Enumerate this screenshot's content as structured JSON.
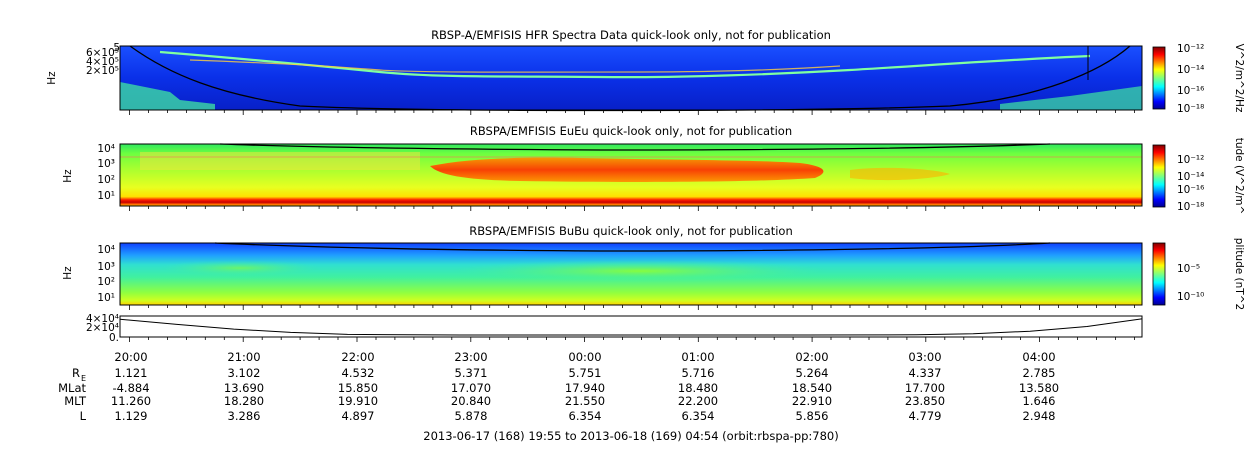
{
  "chart_data": [
    {
      "type": "heatmap",
      "title": "RBSP-A/EMFISIS  HFR Spectra Data quick-look only, not for publication",
      "ylabel": "Hz",
      "ytick_labels": [
        "6×10⁵",
        "4×10⁵",
        "2×10⁵",
        "5"
      ],
      "colorbar_label": "V^2/m^2/Hz",
      "colorbar_ticks": [
        "10⁻¹²",
        "10⁻¹⁴",
        "10⁻¹⁶",
        "10⁻¹⁸"
      ],
      "colorbar_range": [
        1e-18,
        1e-12
      ]
    },
    {
      "type": "heatmap",
      "title": "RBSPA/EMFISIS  EuEu quick-look only, not for publication",
      "ylabel": "Hz",
      "yscale": "log",
      "ytick_labels": [
        "10⁴",
        "10³",
        "10²",
        "10¹"
      ],
      "colorbar_label": "tude (V^2/m^",
      "colorbar_ticks": [
        "10⁻¹²",
        "10⁻¹⁴",
        "10⁻¹⁶",
        "10⁻¹⁸"
      ],
      "colorbar_range": [
        1e-18,
        1e-12
      ]
    },
    {
      "type": "heatmap",
      "title": "RBSPA/EMFISIS  BuBu quick-look only, not for publication",
      "ylabel": "Hz",
      "yscale": "log",
      "ytick_labels": [
        "10⁴",
        "10³",
        "10²",
        "10¹"
      ],
      "colorbar_label": "plitude (nT^2",
      "colorbar_ticks": [
        "10⁻⁵",
        "10⁻¹⁰"
      ],
      "colorbar_range": [
        1e-12,
        0.001
      ]
    },
    {
      "type": "line",
      "ytick_labels": [
        "4×10⁴",
        "2×10⁴",
        "0."
      ],
      "ylim": [
        0,
        40000
      ],
      "x": [
        0,
        0.5,
        1,
        1.5,
        2,
        3,
        4,
        5,
        6,
        7,
        7.5,
        8,
        8.5,
        8.98
      ],
      "values": [
        37000,
        25000,
        14000,
        6000,
        1500,
        0,
        0,
        0,
        0,
        500,
        3000,
        9000,
        20000,
        38000
      ]
    }
  ],
  "time_axis": {
    "labels": [
      "20:00",
      "21:00",
      "22:00",
      "23:00",
      "00:00",
      "01:00",
      "02:00",
      "03:00",
      "04:00"
    ],
    "start_hours": 19.9167,
    "span_hours": 8.9833
  },
  "ephemeris": {
    "rows": [
      {
        "name": "R",
        "sub": "E",
        "values": [
          "1.121",
          "3.102",
          "4.532",
          "5.371",
          "5.751",
          "5.716",
          "5.264",
          "4.337",
          "2.785"
        ]
      },
      {
        "name": "MLat",
        "sub": "",
        "values": [
          "-4.884",
          "13.690",
          "15.850",
          "17.070",
          "17.940",
          "18.480",
          "18.540",
          "17.700",
          "13.580"
        ]
      },
      {
        "name": "MLT",
        "sub": "",
        "values": [
          "11.260",
          "18.280",
          "19.910",
          "20.840",
          "21.550",
          "22.200",
          "22.910",
          "23.850",
          "1.646"
        ]
      },
      {
        "name": "L",
        "sub": "",
        "values": [
          "1.129",
          "3.286",
          "4.897",
          "5.878",
          "6.354",
          "6.354",
          "5.856",
          "4.779",
          "2.948"
        ]
      }
    ]
  },
  "footer": "2013-06-17 (168) 19:55 to 2013-06-18 (169) 04:54 (orbit:rbspa-pp:780)"
}
